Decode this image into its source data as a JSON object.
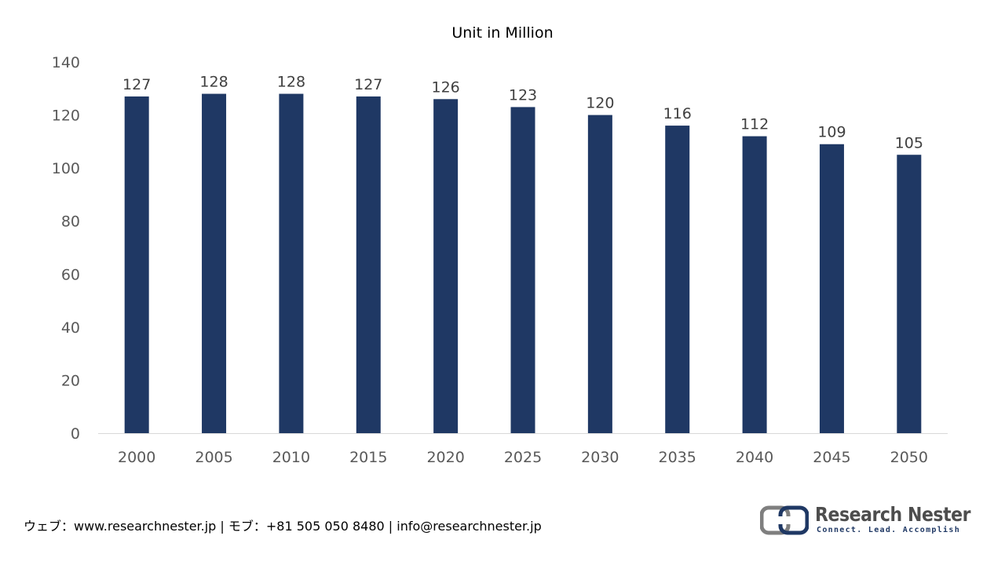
{
  "chart_data": {
    "type": "bar",
    "title": "Unit in Million",
    "categories": [
      "2000",
      "2005",
      "2010",
      "2015",
      "2020",
      "2025",
      "2030",
      "2035",
      "2040",
      "2045",
      "2050"
    ],
    "values": [
      127,
      128,
      128,
      127,
      126,
      123,
      120,
      116,
      112,
      109,
      105
    ],
    "data_labels": [
      "127",
      "128",
      "128",
      "127",
      "126",
      "123",
      "120",
      "116",
      "112",
      "109",
      "105"
    ],
    "yticks": [
      "0",
      "20",
      "40",
      "60",
      "80",
      "100",
      "120",
      "140"
    ],
    "ylim": [
      0,
      140
    ],
    "grid": false,
    "legend": "none",
    "bar_color": "#1f3864"
  },
  "footer": {
    "contact": "ウェブ：www.researchnester.jp | モブ：+81 505 050 8480 | info@researchnester.jp"
  },
  "logo": {
    "name": "Research Nester",
    "tagline": "Connect. Lead. Accomplish"
  }
}
